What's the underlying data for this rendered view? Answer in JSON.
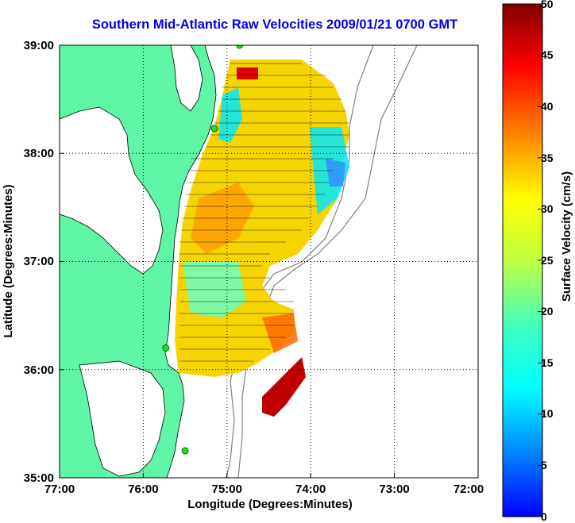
{
  "title": "Southern Mid-Atlantic Raw Velocities 2009/01/21 0700 GMT",
  "x_axis": {
    "label": "Longitude (Degrees:Minutes)",
    "ticks": [
      "77:00",
      "76:00",
      "75:00",
      "74:00",
      "73:00",
      "72:00"
    ]
  },
  "y_axis": {
    "label": "Latitude (Degrees:Minutes)",
    "ticks": [
      "39:00",
      "38:00",
      "37:00",
      "36:00",
      "35:00"
    ]
  },
  "colorbar": {
    "label": "Surface Velocity (cm/s)",
    "range": [
      0,
      50
    ],
    "ticks": [
      "50",
      "45",
      "40",
      "35",
      "30",
      "25",
      "20",
      "15",
      "10",
      "5",
      "0"
    ]
  },
  "map": {
    "lon_range": [
      -77,
      -72
    ],
    "lat_range": [
      35,
      39
    ],
    "grid": "dotted",
    "land_color": "#5ef5a6",
    "stations": [
      {
        "lon": -74.85,
        "lat": 39.0
      },
      {
        "lon": -75.15,
        "lat": 38.23
      },
      {
        "lon": -75.73,
        "lat": 36.2
      },
      {
        "lon": -75.5,
        "lat": 35.25
      }
    ]
  }
}
